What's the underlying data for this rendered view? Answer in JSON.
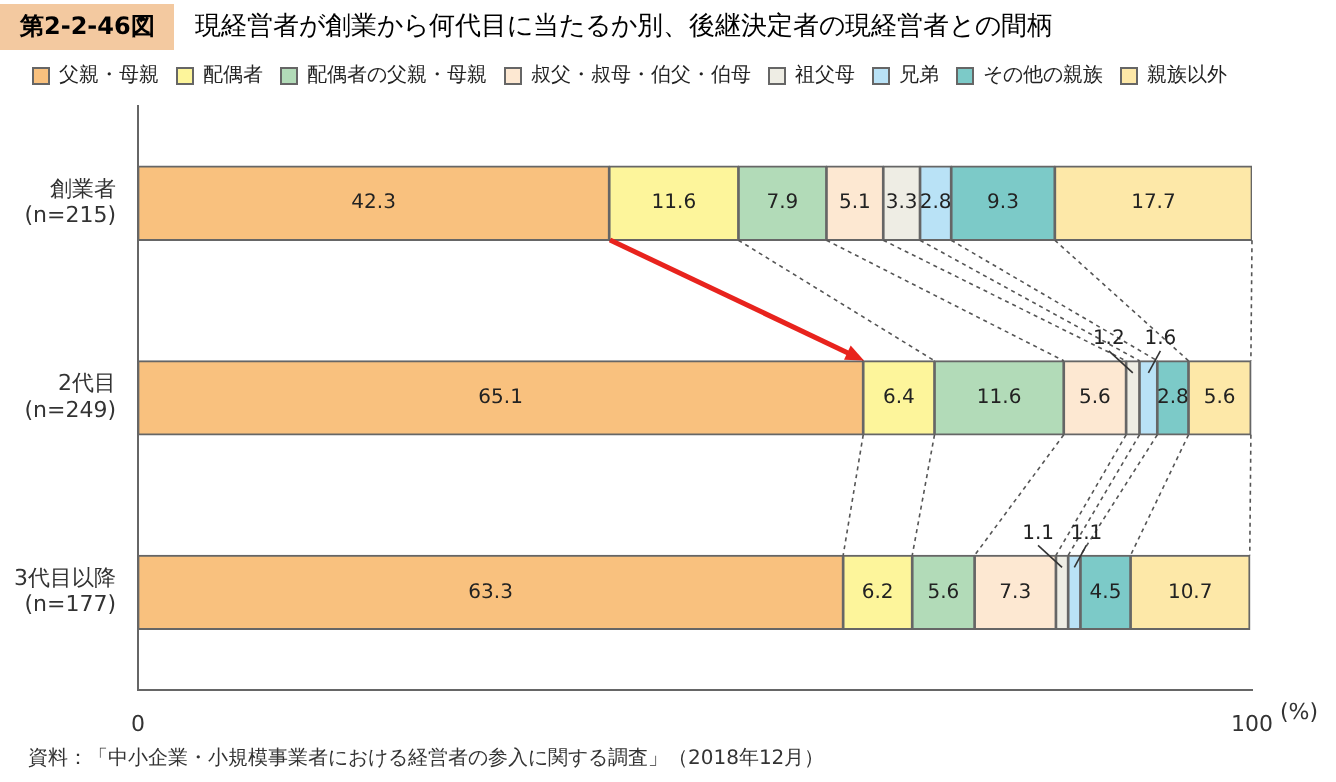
{
  "chart_data": {
    "type": "bar",
    "orientation": "horizontal",
    "stacked": true,
    "title": "現経営者が創業から何代目に当たるか別、後継決定者の現経営者との間柄",
    "categories": [
      "創業者\n(n=215)",
      "2代目\n(n=249)",
      "3代目以降\n(n=177)"
    ],
    "series": [
      {
        "name": "父親・母親",
        "color": "#f9c17e",
        "values": [
          42.3,
          65.1,
          63.3
        ]
      },
      {
        "name": "配偶者",
        "color": "#fdf59b",
        "values": [
          11.6,
          6.4,
          6.2
        ]
      },
      {
        "name": "配偶者の父親・母親",
        "color": "#b2dbb8",
        "values": [
          7.9,
          11.6,
          5.6
        ]
      },
      {
        "name": "叔父・叔母・伯父・伯母",
        "color": "#fde8d2",
        "values": [
          5.1,
          5.6,
          7.3
        ]
      },
      {
        "name": "祖父母",
        "color": "#eeede4",
        "values": [
          3.3,
          1.2,
          1.1
        ]
      },
      {
        "name": "兄弟",
        "color": "#b9e2f6",
        "values": [
          2.8,
          1.6,
          1.1
        ]
      },
      {
        "name": "その他の親族",
        "color": "#7ccac8",
        "values": [
          9.3,
          2.8,
          4.5
        ]
      },
      {
        "name": "親族以外",
        "color": "#fde8a8",
        "values": [
          17.7,
          5.6,
          10.7
        ]
      }
    ],
    "xlim": [
      0,
      100
    ],
    "xticks": [
      0,
      100
    ],
    "xlabel": "(%)",
    "grid": false,
    "legend": "top",
    "data_labels": true,
    "annotations": [
      "第2-2-46図",
      "資料：「中小企業・小規模事業者における経営者の参入に関する調査」（2018年12月）"
    ]
  }
}
